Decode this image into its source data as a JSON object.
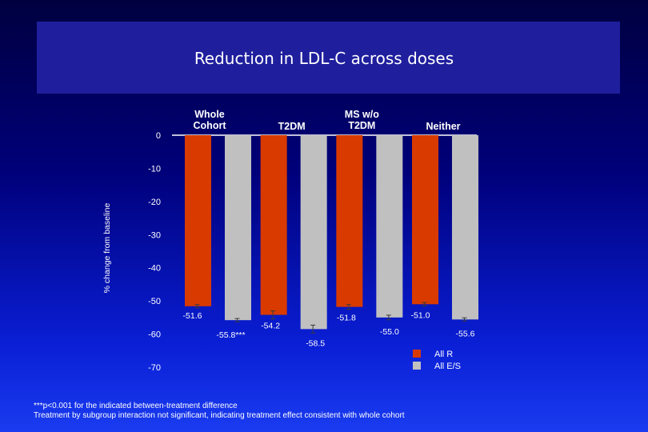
{
  "chart_data": {
    "type": "bar",
    "title": "Reduction in LDL-C across doses",
    "ylabel": "% change from baseline",
    "xlabel": "",
    "ylim": [
      -70,
      0
    ],
    "yticks": [
      0,
      -10,
      -20,
      -30,
      -40,
      -50,
      -60,
      -70
    ],
    "categories": [
      "Whole Cohort",
      "T2DM",
      "MS w/o T2DM",
      "Neither"
    ],
    "category_label_lines": [
      [
        "Whole",
        "Cohort"
      ],
      [
        "T2DM"
      ],
      [
        "MS w/o",
        "T2DM"
      ],
      [
        "Neither"
      ]
    ],
    "series": [
      {
        "name": "All R",
        "color": "#d83a00",
        "values": [
          -51.6,
          -54.2,
          -51.8,
          -51.0
        ],
        "labels": [
          "-51.6",
          "-54.2",
          "-51.8",
          "-51.0"
        ],
        "err": [
          0.5,
          1.2,
          0.7,
          0.5
        ]
      },
      {
        "name": "All E/S",
        "color": "#c0c0c0",
        "values": [
          -55.8,
          -58.5,
          -55.0,
          -55.6
        ],
        "labels": [
          "-55.8***",
          "-58.5",
          "-55.0",
          "-55.6"
        ],
        "err": [
          0.5,
          1.2,
          0.7,
          0.5
        ]
      }
    ],
    "legend_position": "bottom-right",
    "grid": false
  },
  "footnotes": [
    "***p<0.001 for the indicated between-treatment difference",
    "Treatment by subgroup interaction not significant, indicating treatment effect consistent with whole cohort"
  ]
}
